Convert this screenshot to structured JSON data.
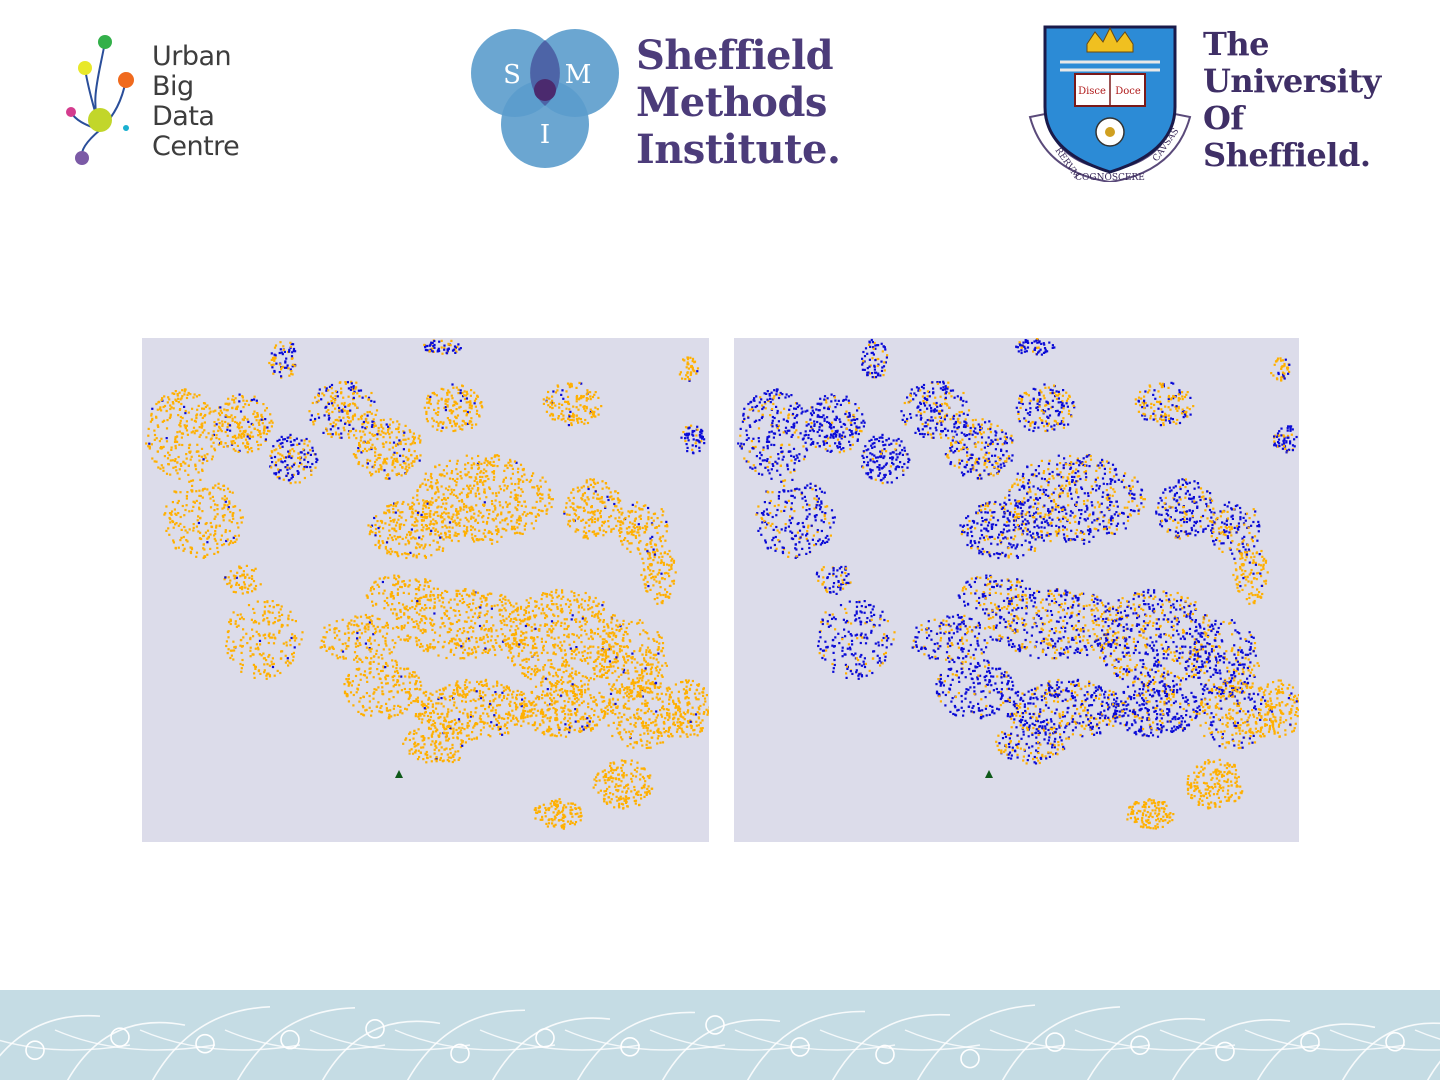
{
  "header": {
    "ubdc_logo": {
      "lines": [
        "Urban",
        "Big",
        "Data",
        "Centre"
      ]
    },
    "smi_logo": {
      "circle_letters": [
        "S",
        "M",
        "I"
      ],
      "lines": [
        "Sheffield",
        "Methods",
        "Institute."
      ]
    },
    "uos_logo": {
      "lines": [
        "The",
        "University",
        "Of",
        "Sheffield."
      ],
      "crest_motto": [
        "RERVM",
        "COGNOSCERE",
        "CAVSAS"
      ],
      "book_text": [
        "Disce",
        "Doce"
      ]
    }
  },
  "maps": {
    "colors": {
      "background": "#dcdcea",
      "orange": "#ffb000",
      "blue": "#0b0bd6",
      "marker": "#0f5a1a"
    },
    "left": {
      "name": "map-left",
      "dominant": "orange"
    },
    "right": {
      "name": "map-right",
      "dominant": "blue"
    }
  },
  "footer": {
    "color": "#c5dce4",
    "pattern": "network-lines-and-circles"
  }
}
